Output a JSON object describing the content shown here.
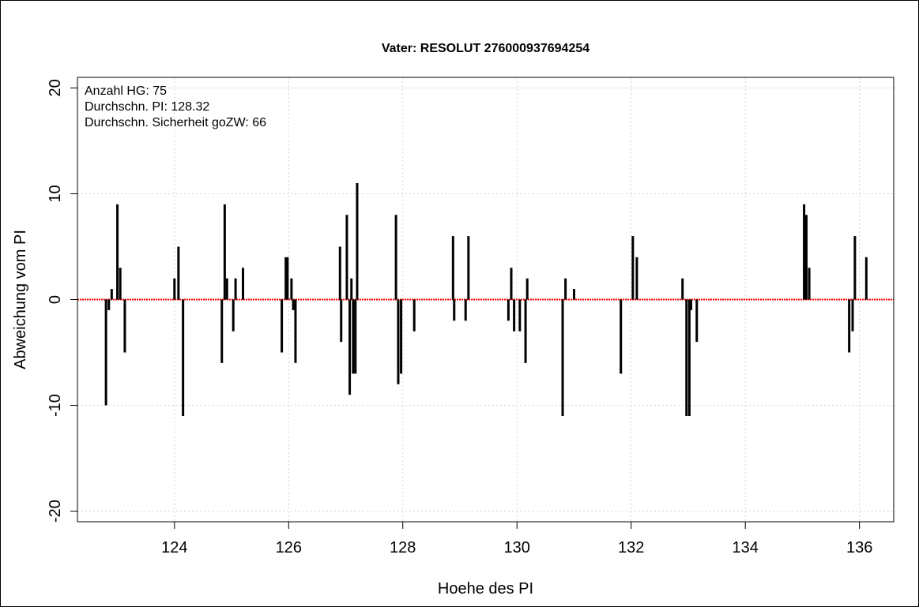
{
  "chart_data": {
    "type": "bar",
    "title": "Vater: RESOLUT 276000937694254",
    "xlabel": "Hoehe des PI",
    "ylabel": "Abweichung vom PI",
    "xlim": [
      122.3,
      136.6
    ],
    "ylim": [
      -21,
      21
    ],
    "xticks": [
      "124",
      "126",
      "128",
      "130",
      "132",
      "134",
      "136"
    ],
    "yticks": [
      "-20",
      "-10",
      "0",
      "10",
      "20"
    ],
    "grid": true,
    "annotations": [
      "Anzahl HG: 75",
      "Durchschn. PI: 128.32",
      "Durchschn. Sicherheit goZW: 66"
    ],
    "reference_line": {
      "y": 0,
      "color": "#ff0000",
      "style": "dotted"
    },
    "bar_color": "#000000",
    "points": [
      {
        "x": 122.8,
        "y": -10
      },
      {
        "x": 122.85,
        "y": -1
      },
      {
        "x": 122.9,
        "y": 1
      },
      {
        "x": 123.0,
        "y": 9
      },
      {
        "x": 123.05,
        "y": 3
      },
      {
        "x": 123.13,
        "y": -5
      },
      {
        "x": 124.0,
        "y": 2
      },
      {
        "x": 124.07,
        "y": 5
      },
      {
        "x": 124.15,
        "y": -11
      },
      {
        "x": 124.83,
        "y": -6
      },
      {
        "x": 124.88,
        "y": 9
      },
      {
        "x": 124.92,
        "y": 2
      },
      {
        "x": 125.03,
        "y": -3
      },
      {
        "x": 125.07,
        "y": 2
      },
      {
        "x": 125.2,
        "y": 3
      },
      {
        "x": 125.88,
        "y": -5
      },
      {
        "x": 125.95,
        "y": 4
      },
      {
        "x": 125.98,
        "y": 4
      },
      {
        "x": 126.05,
        "y": 2
      },
      {
        "x": 126.08,
        "y": -1
      },
      {
        "x": 126.12,
        "y": -6
      },
      {
        "x": 126.9,
        "y": 5
      },
      {
        "x": 126.92,
        "y": -4
      },
      {
        "x": 127.02,
        "y": 8
      },
      {
        "x": 127.07,
        "y": -9
      },
      {
        "x": 127.1,
        "y": 2
      },
      {
        "x": 127.13,
        "y": -7
      },
      {
        "x": 127.17,
        "y": -7
      },
      {
        "x": 127.2,
        "y": 11
      },
      {
        "x": 127.88,
        "y": 8
      },
      {
        "x": 127.92,
        "y": -8
      },
      {
        "x": 127.97,
        "y": -7
      },
      {
        "x": 128.2,
        "y": -3
      },
      {
        "x": 128.88,
        "y": 6
      },
      {
        "x": 128.9,
        "y": -2
      },
      {
        "x": 129.1,
        "y": -2
      },
      {
        "x": 129.15,
        "y": 6
      },
      {
        "x": 129.85,
        "y": -2
      },
      {
        "x": 129.9,
        "y": 3
      },
      {
        "x": 129.95,
        "y": -3
      },
      {
        "x": 130.05,
        "y": -3
      },
      {
        "x": 130.15,
        "y": -6
      },
      {
        "x": 130.18,
        "y": 2
      },
      {
        "x": 130.8,
        "y": -11
      },
      {
        "x": 130.85,
        "y": 2
      },
      {
        "x": 131.0,
        "y": 1
      },
      {
        "x": 131.82,
        "y": -7
      },
      {
        "x": 132.03,
        "y": 6
      },
      {
        "x": 132.1,
        "y": 4
      },
      {
        "x": 132.9,
        "y": 2
      },
      {
        "x": 132.97,
        "y": -11
      },
      {
        "x": 133.02,
        "y": -11
      },
      {
        "x": 133.05,
        "y": -1
      },
      {
        "x": 133.15,
        "y": -4
      },
      {
        "x": 135.03,
        "y": 9
      },
      {
        "x": 135.07,
        "y": 8
      },
      {
        "x": 135.12,
        "y": 3
      },
      {
        "x": 135.82,
        "y": -5
      },
      {
        "x": 135.88,
        "y": -3
      },
      {
        "x": 135.92,
        "y": 6
      },
      {
        "x": 136.12,
        "y": 4
      }
    ]
  }
}
